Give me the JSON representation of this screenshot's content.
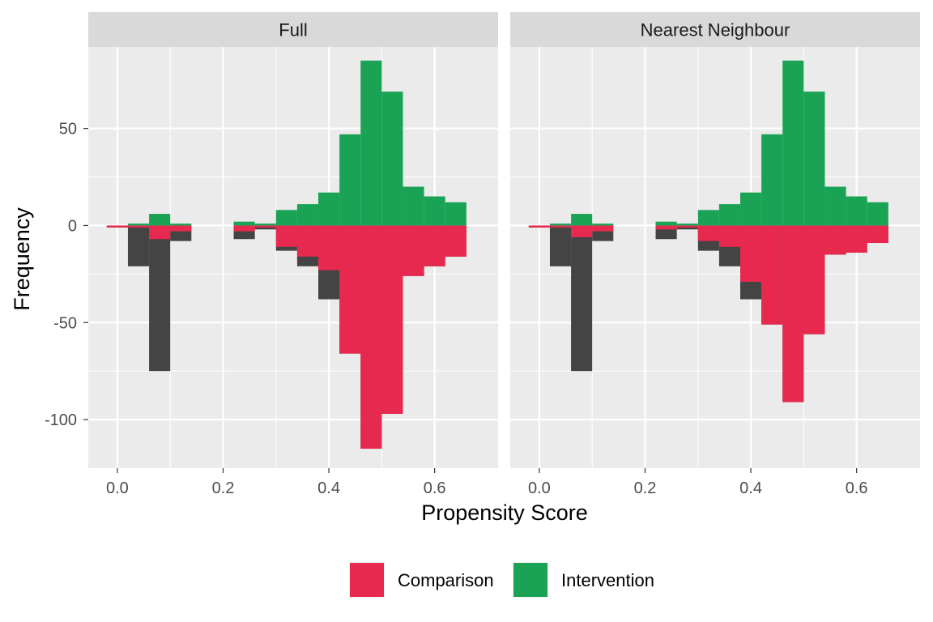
{
  "chart_data": {
    "type": "bar",
    "subtype": "mirrored-histogram, faceted",
    "xlabel": "Propensity Score",
    "ylabel": "Frequency",
    "xlim": [
      -0.055,
      0.72
    ],
    "ylim": [
      -125,
      92
    ],
    "x_ticks": [
      0.0,
      0.2,
      0.4,
      0.6
    ],
    "x_tick_labels": [
      "0.0",
      "0.2",
      "0.4",
      "0.6"
    ],
    "y_ticks": [
      50,
      0,
      -50,
      -100
    ],
    "y_tick_labels": [
      "50",
      "0",
      "-50",
      "-100"
    ],
    "bin_width": 0.04,
    "bin_centers": [
      0.0,
      0.04,
      0.08,
      0.12,
      0.16,
      0.2,
      0.24,
      0.28,
      0.32,
      0.36,
      0.4,
      0.44,
      0.48,
      0.52,
      0.56,
      0.6,
      0.64
    ],
    "legend": {
      "position": "bottom",
      "entries": [
        {
          "label": "Comparison",
          "color": "#E8294F"
        },
        {
          "label": "Intervention",
          "color": "#1BA355"
        }
      ]
    },
    "unmatched_color": "#444444",
    "panels": [
      {
        "title": "Full",
        "series": [
          {
            "name": "Intervention",
            "values": [
              0,
              1,
              6,
              1,
              0,
              0,
              2,
              1,
              8,
              11,
              17,
              47,
              85,
              69,
              20,
              15,
              12
            ]
          },
          {
            "name": "Comparison",
            "values": [
              -1,
              -1,
              -7,
              -3,
              0,
              0,
              -3,
              -1,
              -11,
              -16,
              -23,
              -66,
              -115,
              -97,
              -26,
              -21,
              -16
            ]
          },
          {
            "name": "all",
            "values": [
              -1,
              -21,
              -75,
              -8,
              0,
              0,
              -7,
              -2,
              -13,
              -21,
              -38,
              -66,
              -115,
              -97,
              -26,
              -21,
              -16
            ]
          }
        ]
      },
      {
        "title": "Nearest Neighbour",
        "series": [
          {
            "name": "Intervention",
            "values": [
              0,
              1,
              6,
              1,
              0,
              0,
              2,
              1,
              8,
              11,
              17,
              47,
              85,
              69,
              20,
              15,
              12
            ]
          },
          {
            "name": "Comparison",
            "values": [
              -1,
              -1,
              -6,
              -3,
              0,
              0,
              -2,
              -1,
              -8,
              -11,
              -29,
              -51,
              -91,
              -56,
              -15,
              -14,
              -9
            ]
          },
          {
            "name": "all",
            "values": [
              -1,
              -21,
              -75,
              -8,
              0,
              0,
              -7,
              -2,
              -13,
              -21,
              -38,
              -51,
              -91,
              -56,
              -15,
              -14,
              -9
            ]
          }
        ]
      }
    ]
  }
}
